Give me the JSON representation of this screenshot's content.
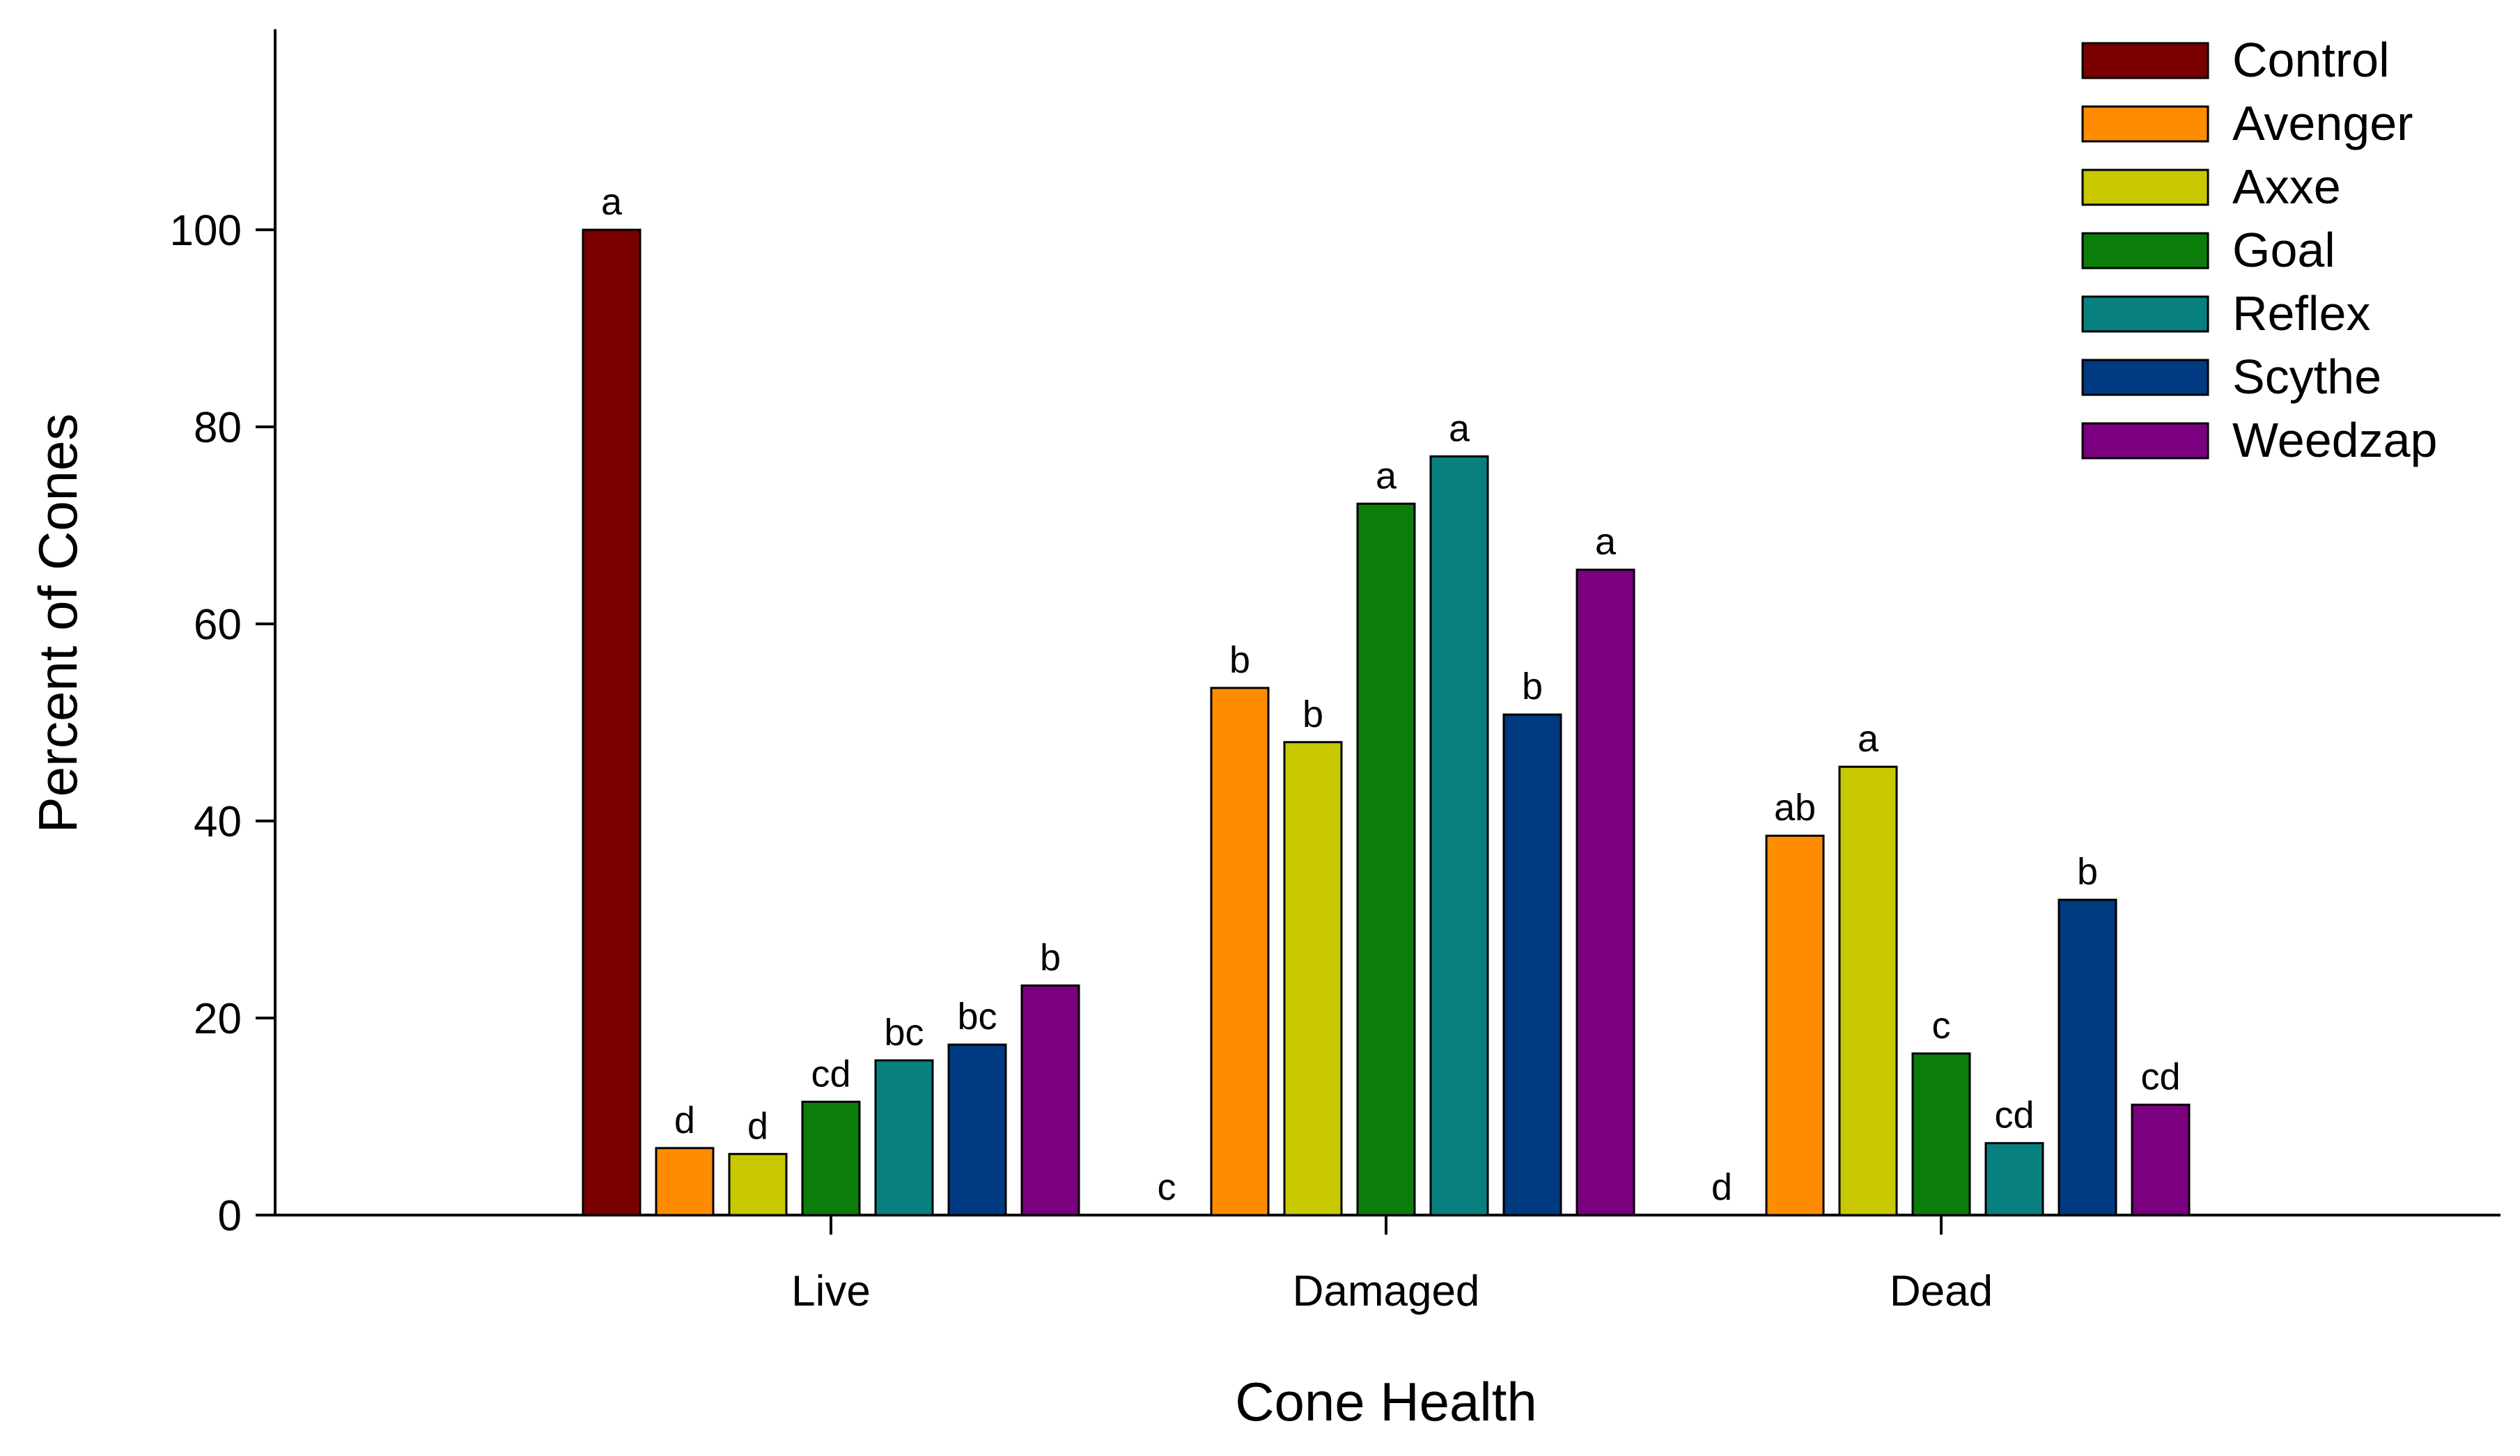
{
  "chart_data": {
    "type": "bar",
    "title": "",
    "xlabel": "Cone Health",
    "ylabel": "Percent of Cones",
    "ylim": [
      0,
      120
    ],
    "yticks": [
      0,
      20,
      40,
      60,
      80,
      100
    ],
    "ytick_labels": [
      "0",
      "20",
      "40",
      "60",
      "80",
      "100"
    ],
    "categories": [
      "Live",
      "Damaged",
      "Dead"
    ],
    "legend_position": "top-right",
    "grid": false,
    "series": [
      {
        "name": "Control",
        "color": "#7a0000",
        "values": [
          100,
          0,
          0
        ],
        "labels": [
          "a",
          "c",
          "d"
        ]
      },
      {
        "name": "Avenger",
        "color": "#ff8c00",
        "values": [
          6.8,
          53.5,
          38.5
        ],
        "labels": [
          "d",
          "b",
          "ab"
        ]
      },
      {
        "name": "Axxe",
        "color": "#c8c800",
        "values": [
          6.2,
          48,
          45.5
        ],
        "labels": [
          "d",
          "b",
          "a"
        ]
      },
      {
        "name": "Goal",
        "color": "#0a7d0a",
        "values": [
          11.5,
          72.2,
          16.4
        ],
        "labels": [
          "cd",
          "a",
          "c"
        ]
      },
      {
        "name": "Reflex",
        "color": "#088080",
        "values": [
          15.7,
          77,
          7.3
        ],
        "labels": [
          "bc",
          "a",
          "cd"
        ]
      },
      {
        "name": "Scythe",
        "color": "#003a80",
        "values": [
          17.3,
          50.8,
          32
        ],
        "labels": [
          "bc",
          "b",
          "b"
        ]
      },
      {
        "name": "Weedzap",
        "color": "#7a0080",
        "values": [
          23.3,
          65.5,
          11.2
        ],
        "labels": [
          "b",
          "a",
          "cd"
        ]
      }
    ]
  }
}
